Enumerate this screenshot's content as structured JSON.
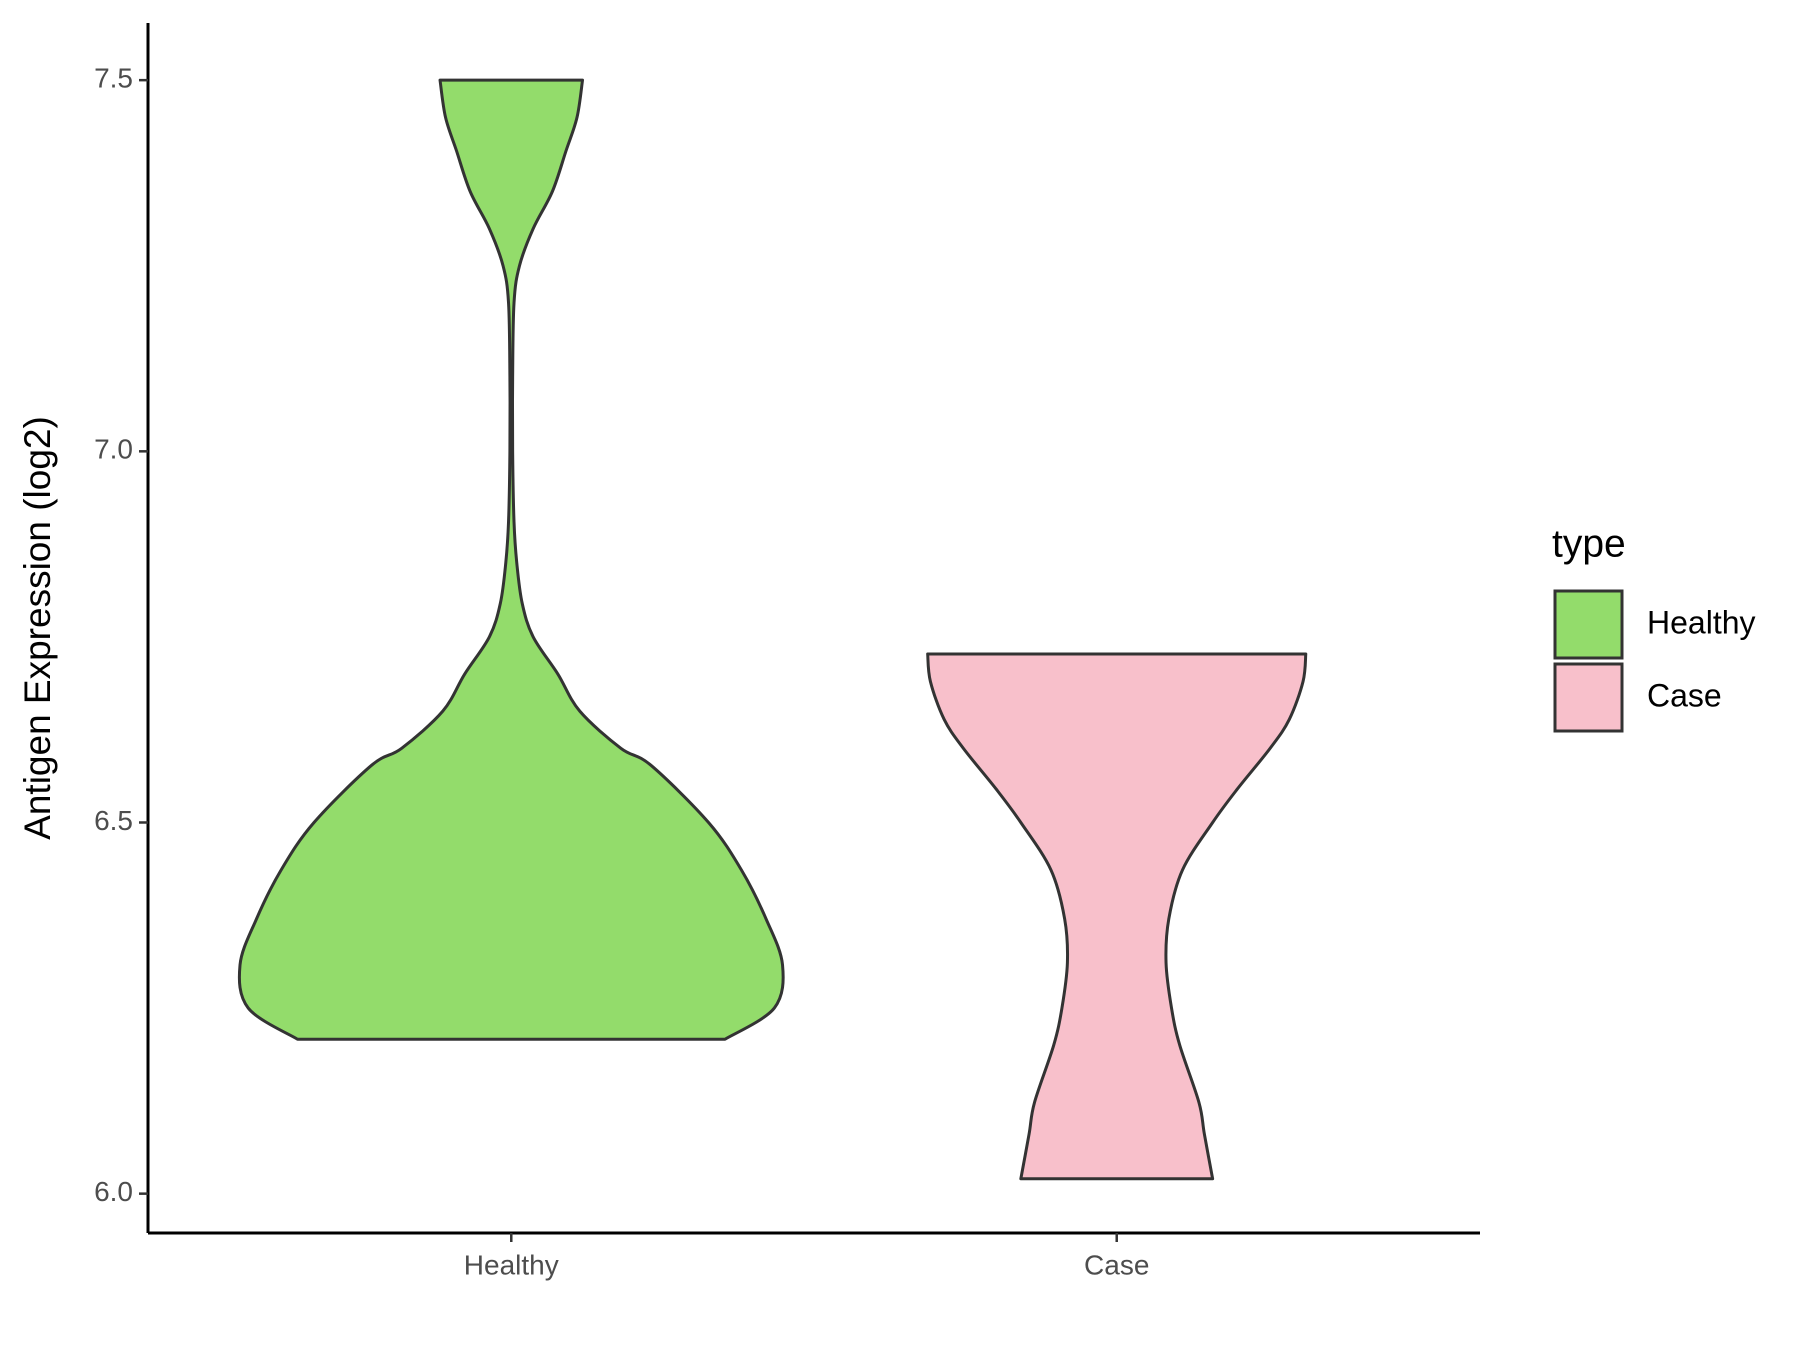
{
  "chart_data": {
    "type": "violin",
    "y_label": "Antigen Expression (log2)",
    "categories": [
      "Healthy",
      "Case"
    ],
    "legend_title": "type",
    "legend_position": "right",
    "series": [
      {
        "name": "Healthy",
        "color": "#93dc6b",
        "y": [
          6.208,
          6.25,
          6.308,
          6.37,
          6.436,
          6.5,
          6.577,
          6.6,
          6.65,
          6.7,
          6.75,
          6.795,
          6.85,
          6.905,
          7.0,
          7.1,
          7.2,
          7.25,
          7.3,
          7.35,
          7.405,
          7.45,
          7.5
        ],
        "density": [
          0.78,
          0.96,
          0.99,
          0.93,
          0.84,
          0.72,
          0.51,
          0.4,
          0.25,
          0.17,
          0.08,
          0.04,
          0.02,
          0.01,
          0.005,
          0.005,
          0.01,
          0.03,
          0.08,
          0.15,
          0.2,
          0.24,
          0.26
        ]
      },
      {
        "name": "Case",
        "color": "#f8c0cb",
        "y": [
          6.02,
          6.08,
          6.123,
          6.2,
          6.25,
          6.311,
          6.37,
          6.436,
          6.5,
          6.545,
          6.6,
          6.639,
          6.69,
          6.727
        ],
        "density": [
          0.35,
          0.32,
          0.3,
          0.23,
          0.2,
          0.18,
          0.19,
          0.24,
          0.35,
          0.44,
          0.56,
          0.63,
          0.68,
          0.69
        ]
      }
    ],
    "ylim": [
      5.947,
      7.577
    ],
    "yticks": [
      {
        "value": 6,
        "label": "6.0"
      },
      6.5,
      {
        "value": 7,
        "label": "7.0"
      },
      7.5
    ]
  }
}
